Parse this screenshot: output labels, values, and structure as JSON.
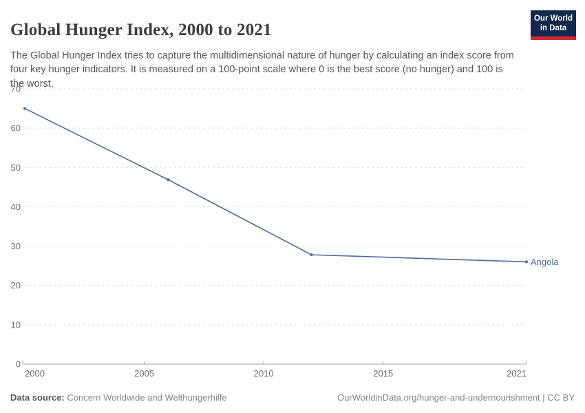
{
  "header": {
    "title": "Global Hunger Index, 2000 to 2021",
    "subtitle": "The Global Hunger Index tries to capture the multidimensional nature of hunger by calculating an index score from four key hunger indicators. It is measured on a 100-point scale where 0 is the best score (no hunger) and 100 is the worst.",
    "logo": {
      "line1": "Our World",
      "line2": "in Data"
    }
  },
  "colors": {
    "series_line": "#4C6A9C",
    "grid": "#dcdcdc",
    "axis": "#a3a3a3",
    "tick_text": "#6e6e6e",
    "logo_bg": "#12294d",
    "logo_accent": "#d2282e"
  },
  "chart_data": {
    "type": "line",
    "title": "Global Hunger Index, 2000 to 2021",
    "xlabel": "",
    "ylabel": "",
    "xlim": [
      2000,
      2021
    ],
    "ylim": [
      0,
      70
    ],
    "x_ticks": [
      2000,
      2005,
      2010,
      2015,
      2021
    ],
    "y_ticks": [
      0,
      10,
      20,
      30,
      40,
      50,
      60,
      70
    ],
    "grid": "horizontal-dashed",
    "legend_position": "end-of-line-label",
    "series": [
      {
        "name": "Angola",
        "color": "#4C6A9C",
        "points": [
          {
            "x": 2000,
            "y": 65.0
          },
          {
            "x": 2006,
            "y": 46.9
          },
          {
            "x": 2012,
            "y": 27.8
          },
          {
            "x": 2021,
            "y": 26.0
          }
        ]
      }
    ]
  },
  "footer": {
    "source_label": "Data source:",
    "source_value": "Concern Worldwide and Welthungerhilfe",
    "citation": "OurWorldinData.org/hunger-and-undernourishment | CC BY"
  }
}
